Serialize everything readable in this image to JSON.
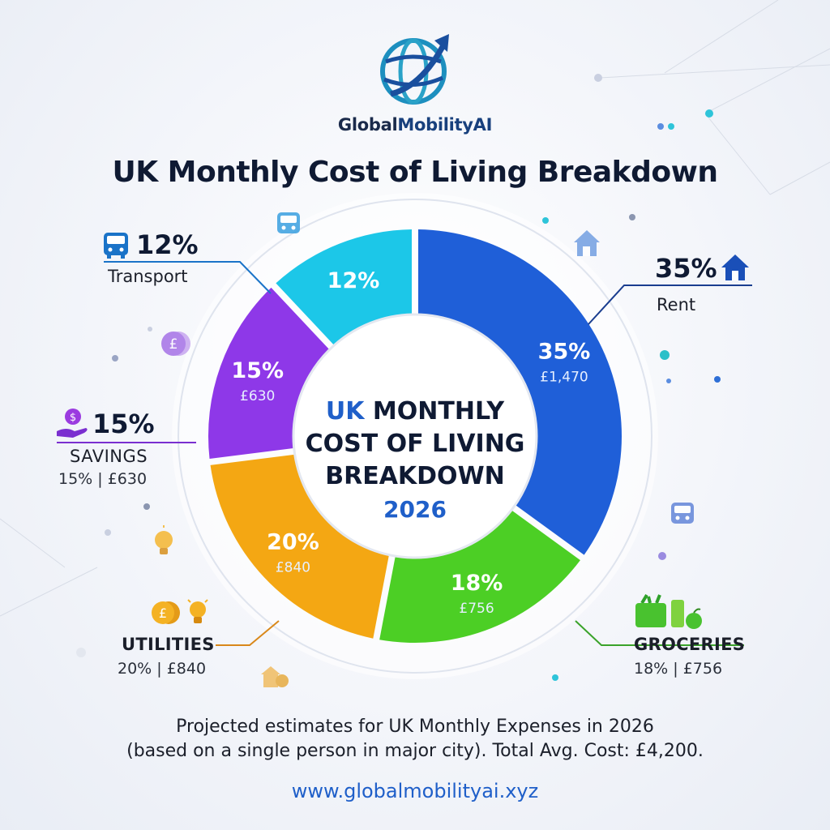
{
  "brand": {
    "name_part1": "Global",
    "name_part2": "MobilityAI"
  },
  "title": "UK Monthly Cost of Living Breakdown",
  "center": {
    "line1_prefix": "UK",
    "line1_rest": " MONTHLY",
    "line2": "COST OF LIVING",
    "line3": "BREAKDOWN",
    "year": "2026"
  },
  "callouts": {
    "transport": {
      "pct": "12%",
      "label": "Transport"
    },
    "rent": {
      "pct": "35%",
      "label": "Rent"
    },
    "savings": {
      "pct": "15%",
      "label": "SAVINGS",
      "sub": "15% | £630"
    },
    "utilities": {
      "label": "UTILITIES",
      "sub": "20% | £840"
    },
    "groceries": {
      "label": "GROCERIES",
      "sub": "18% | £756"
    }
  },
  "footer": {
    "line1": "Projected estimates for UK Monthly Expenses in 2026",
    "line2": "(based on a single person in major city). Total Avg. Cost: £4,200."
  },
  "website": "www.globalmobilityai.xyz",
  "chart_data": {
    "type": "donut",
    "title": "UK Monthly Cost of Living Breakdown",
    "total": "£4,200",
    "slices": [
      {
        "category": "Rent",
        "value": 35,
        "label": "35%",
        "amount": "£1,470",
        "color": "#1f5fd8"
      },
      {
        "category": "Groceries",
        "value": 18,
        "label": "18%",
        "amount": "£756",
        "color": "#4ccf25"
      },
      {
        "category": "Utilities",
        "value": 20,
        "label": "20%",
        "amount": "£840",
        "color": "#f4a713"
      },
      {
        "category": "Savings",
        "value": 15,
        "label": "15%",
        "amount": "£630",
        "color": "#8e38e8"
      },
      {
        "category": "Transport",
        "value": 12,
        "label": "12%",
        "amount": "",
        "color": "#1cc7e8"
      }
    ]
  },
  "colors": {
    "accent": "#1f5fc9",
    "title": "#0f1a33"
  },
  "icons": [
    "globe-arrow-logo",
    "bus-icon",
    "house-icon",
    "coin-hand-icon",
    "pound-coin-icon",
    "lightbulb-icon",
    "grocery-basket-icon",
    "apple-icon"
  ]
}
